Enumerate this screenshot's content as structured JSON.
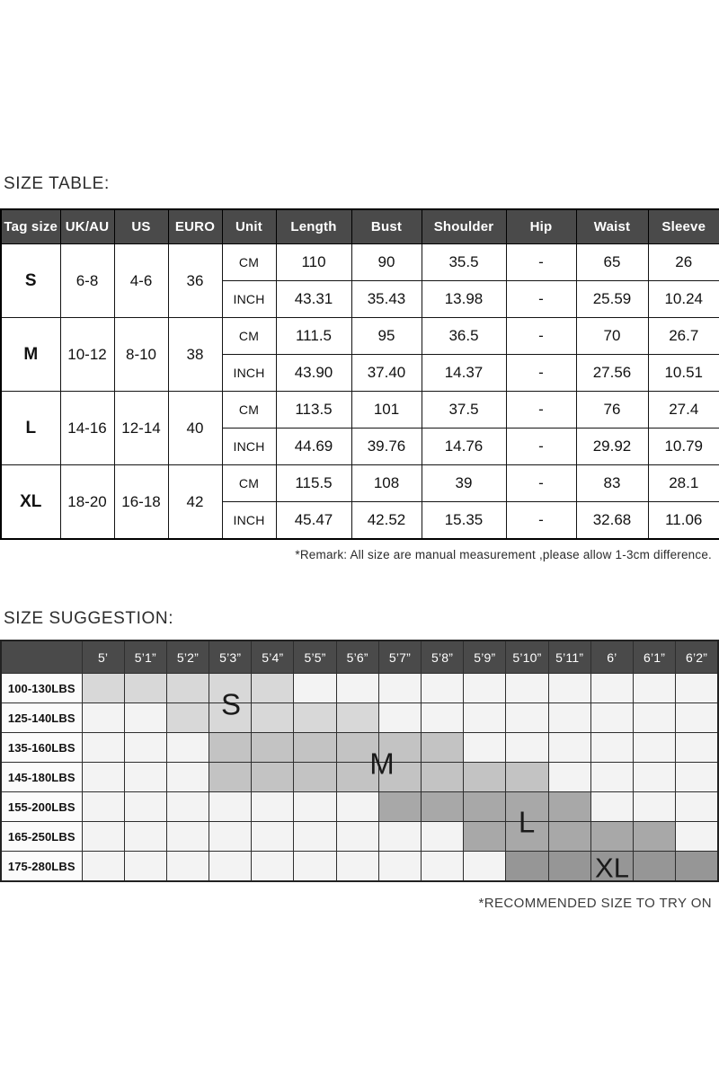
{
  "colors": {
    "header_bg": "#4a4a4a",
    "header_text": "#ffffff",
    "empty_cell": "#f3f3f3",
    "tone_s": "#d8d8d8",
    "tone_m": "#c3c3c3",
    "tone_l": "#a8a8a8",
    "tone_xl": "#969696"
  },
  "size_table": {
    "heading": "SIZE TABLE:",
    "columns": [
      "Tag size",
      "UK/AU",
      "US",
      "EURO",
      "Unit",
      "Length",
      "Bust",
      "Shoulder",
      "Hip",
      "Waist",
      "Sleeve"
    ],
    "unit_labels": {
      "cm": "CM",
      "inch": "INCH"
    },
    "rows": [
      {
        "tag": "S",
        "uk_au": "6-8",
        "us": "4-6",
        "euro": "36",
        "cm": [
          "110",
          "90",
          "35.5",
          "-",
          "65",
          "26"
        ],
        "inch": [
          "43.31",
          "35.43",
          "13.98",
          "-",
          "25.59",
          "10.24"
        ]
      },
      {
        "tag": "M",
        "uk_au": "10-12",
        "us": "8-10",
        "euro": "38",
        "cm": [
          "111.5",
          "95",
          "36.5",
          "-",
          "70",
          "26.7"
        ],
        "inch": [
          "43.90",
          "37.40",
          "14.37",
          "-",
          "27.56",
          "10.51"
        ]
      },
      {
        "tag": "L",
        "uk_au": "14-16",
        "us": "12-14",
        "euro": "40",
        "cm": [
          "113.5",
          "101",
          "37.5",
          "-",
          "76",
          "27.4"
        ],
        "inch": [
          "44.69",
          "39.76",
          "14.76",
          "-",
          "29.92",
          "10.79"
        ]
      },
      {
        "tag": "XL",
        "uk_au": "18-20",
        "us": "16-18",
        "euro": "42",
        "cm": [
          "115.5",
          "108",
          "39",
          "-",
          "83",
          "28.1"
        ],
        "inch": [
          "45.47",
          "42.52",
          "15.35",
          "-",
          "32.68",
          "11.06"
        ]
      }
    ],
    "remark": "*Remark: All size are manual measurement ,please allow 1-3cm difference."
  },
  "size_suggestion": {
    "heading": "SIZE SUGGESTION:",
    "heights": [
      "5’",
      "5’1”",
      "5’2”",
      "5’3”",
      "5’4”",
      "5’5”",
      "5’6”",
      "5’7”",
      "5’8”",
      "5’9”",
      "5’10”",
      "5’11”",
      "6’",
      "6’1”",
      "6’2”"
    ],
    "rows_shading": [
      {
        "weight": "100-130LBS",
        "from": 0,
        "to": 4,
        "tone": "tone_s"
      },
      {
        "weight": "125-140LBS",
        "from": 2,
        "to": 6,
        "tone": "tone_s"
      },
      {
        "weight": "135-160LBS",
        "from": 3,
        "to": 8,
        "tone": "tone_m"
      },
      {
        "weight": "145-180LBS",
        "from": 3,
        "to": 10,
        "tone": "tone_m"
      },
      {
        "weight": "155-200LBS",
        "from": 7,
        "to": 11,
        "tone": "tone_l"
      },
      {
        "weight": "165-250LBS",
        "from": 9,
        "to": 13,
        "tone": "tone_l"
      },
      {
        "weight": "175-280LBS",
        "from": 10,
        "to": 14,
        "tone": "tone_xl"
      }
    ],
    "labels": {
      "s": "S",
      "m": "M",
      "l": "L",
      "xl": "XL"
    },
    "note": "*RECOMMENDED SIZE TO TRY ON"
  }
}
